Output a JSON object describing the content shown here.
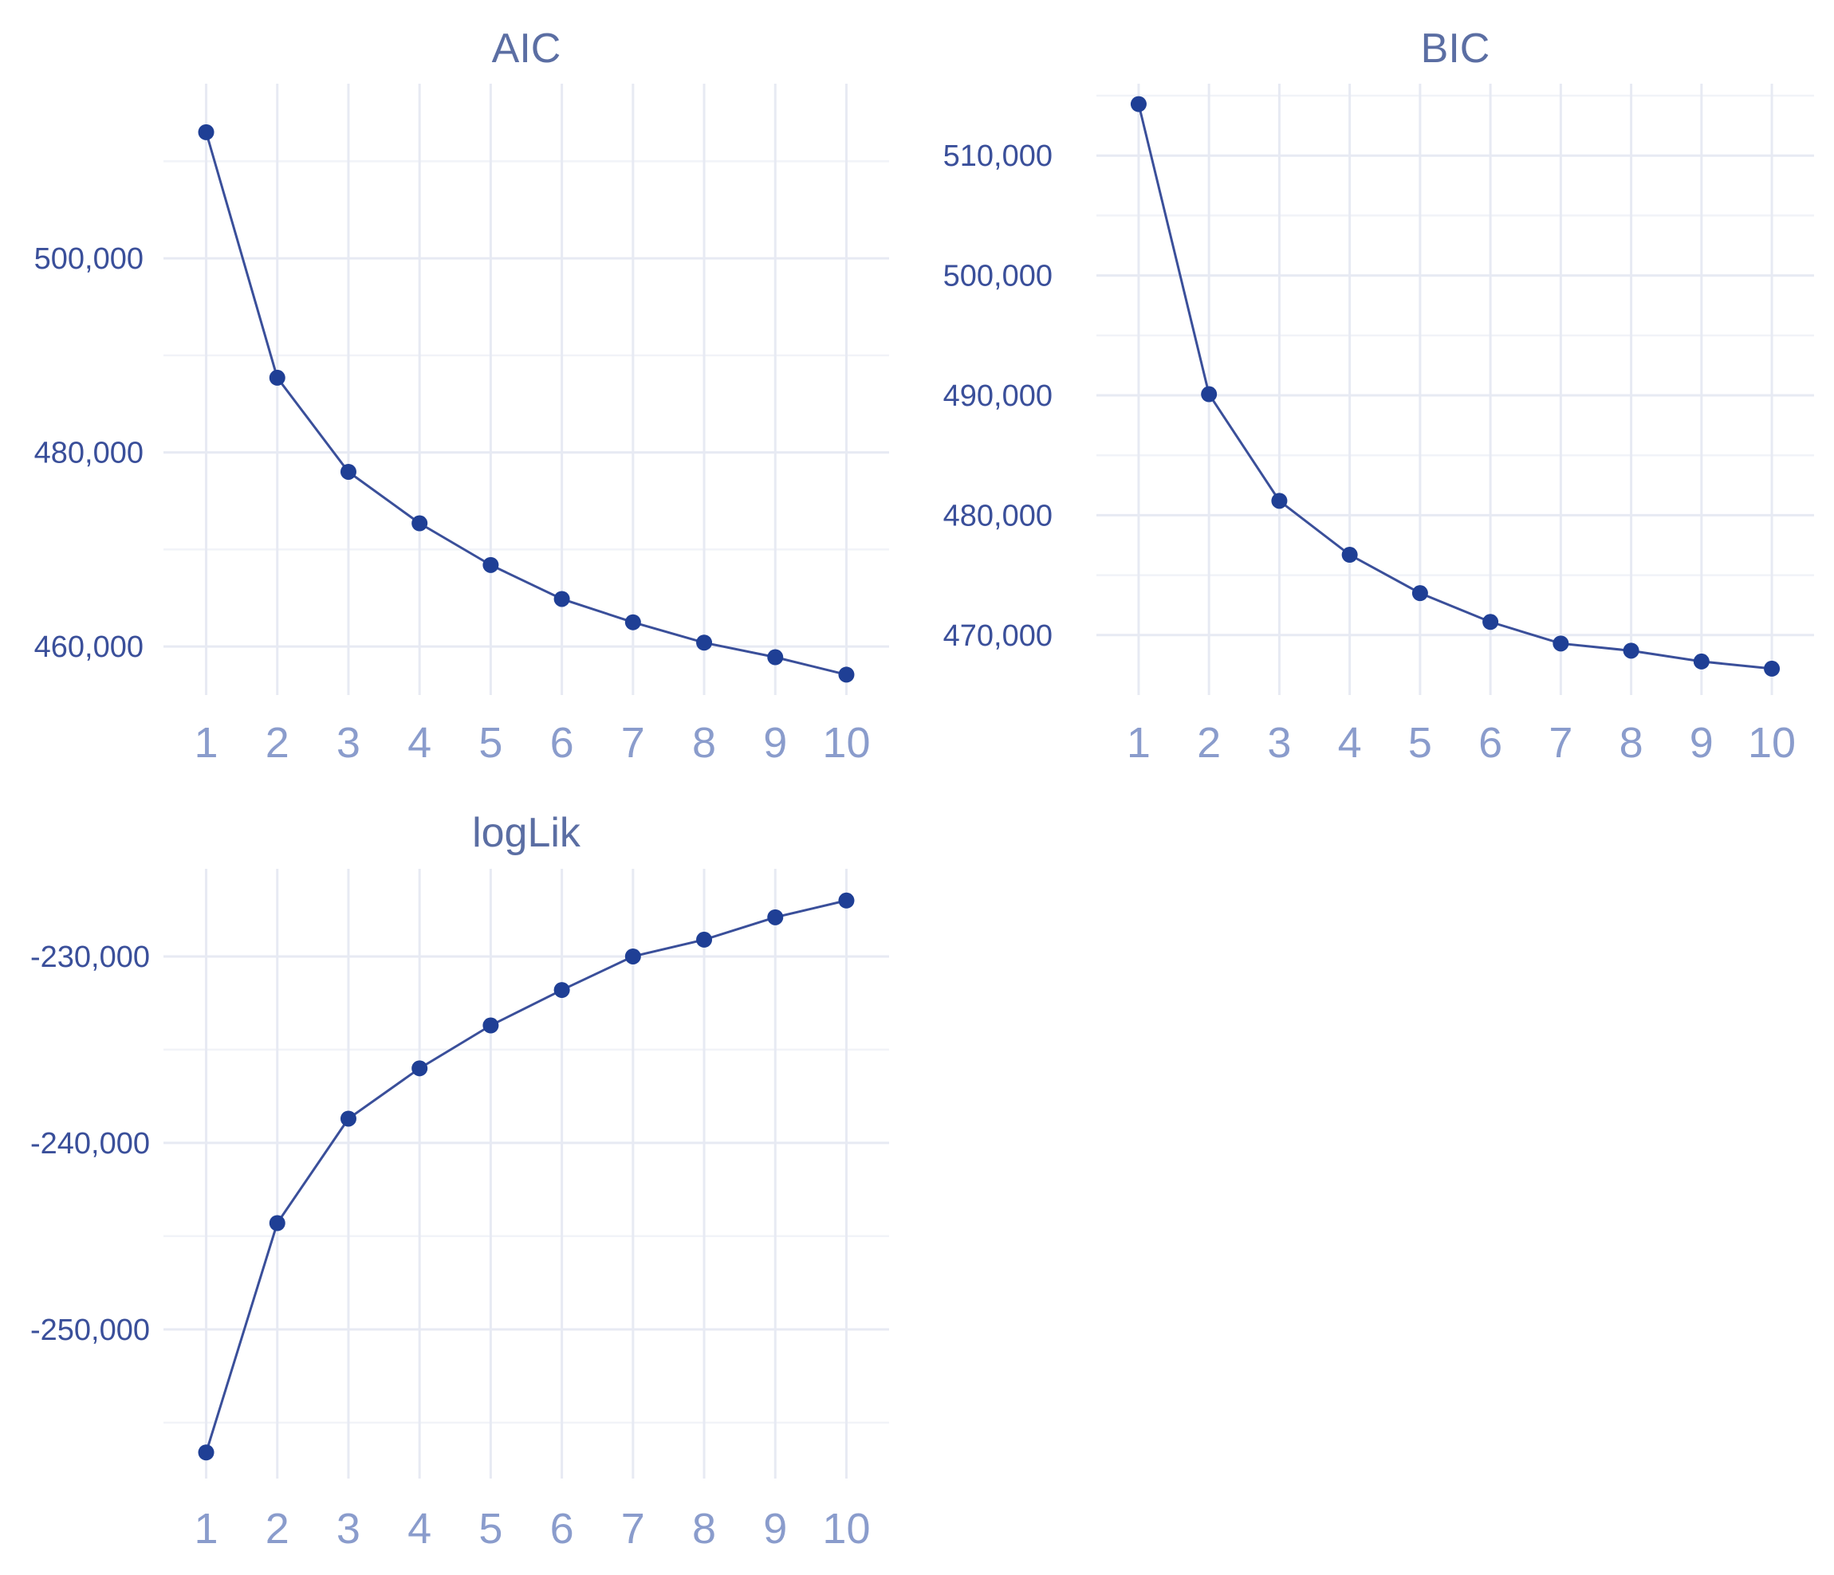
{
  "chart_data": [
    {
      "type": "line",
      "title": "AIC",
      "x": [
        1,
        2,
        3,
        4,
        5,
        6,
        7,
        8,
        9,
        10
      ],
      "values": [
        513000,
        487700,
        478000,
        472700,
        468400,
        464900,
        462500,
        460400,
        458900,
        457100
      ],
      "xlim": [
        0.4,
        10.6
      ],
      "ylim": [
        455000,
        518000
      ],
      "yticks": [
        460000,
        480000,
        500000
      ],
      "ytick_labels": [
        "460,000",
        "480,000",
        "500,000"
      ],
      "xticks": [
        1,
        2,
        3,
        4,
        5,
        6,
        7,
        8,
        9,
        10
      ],
      "xtick_labels": [
        "1",
        "2",
        "3",
        "4",
        "5",
        "6",
        "7",
        "8",
        "9",
        "10"
      ],
      "grid": true,
      "line_color": "#3a4f9a",
      "marker_color": "#1f3f95"
    },
    {
      "type": "line",
      "title": "BIC",
      "x": [
        1,
        2,
        3,
        4,
        5,
        6,
        7,
        8,
        9,
        10
      ],
      "values": [
        514300,
        490100,
        481200,
        476700,
        473500,
        471100,
        469300,
        468700,
        467800,
        467200
      ],
      "xlim": [
        0.4,
        10.6
      ],
      "ylim": [
        465000,
        516000
      ],
      "yticks": [
        470000,
        480000,
        490000,
        500000,
        510000
      ],
      "ytick_labels": [
        "470,000",
        "480,000",
        "490,000",
        "500,000",
        "510,000"
      ],
      "xticks": [
        1,
        2,
        3,
        4,
        5,
        6,
        7,
        8,
        9,
        10
      ],
      "xtick_labels": [
        "1",
        "2",
        "3",
        "4",
        "5",
        "6",
        "7",
        "8",
        "9",
        "10"
      ],
      "grid": true,
      "line_color": "#3a4f9a",
      "marker_color": "#1f3f95"
    },
    {
      "type": "line",
      "title": "logLik",
      "x": [
        1,
        2,
        3,
        4,
        5,
        6,
        7,
        8,
        9,
        10
      ],
      "values": [
        -256600,
        -244300,
        -238700,
        -236000,
        -233700,
        -231800,
        -230000,
        -229100,
        -227900,
        -227000
      ],
      "xlim": [
        0.4,
        10.6
      ],
      "ylim": [
        -258000,
        -225300
      ],
      "yticks": [
        -250000,
        -240000,
        -230000
      ],
      "ytick_labels": [
        "-250,000",
        "-240,000",
        "-230,000"
      ],
      "xticks": [
        1,
        2,
        3,
        4,
        5,
        6,
        7,
        8,
        9,
        10
      ],
      "xtick_labels": [
        "1",
        "2",
        "3",
        "4",
        "5",
        "6",
        "7",
        "8",
        "9",
        "10"
      ],
      "grid": true,
      "line_color": "#3a4f9a",
      "marker_color": "#1f3f95"
    }
  ]
}
